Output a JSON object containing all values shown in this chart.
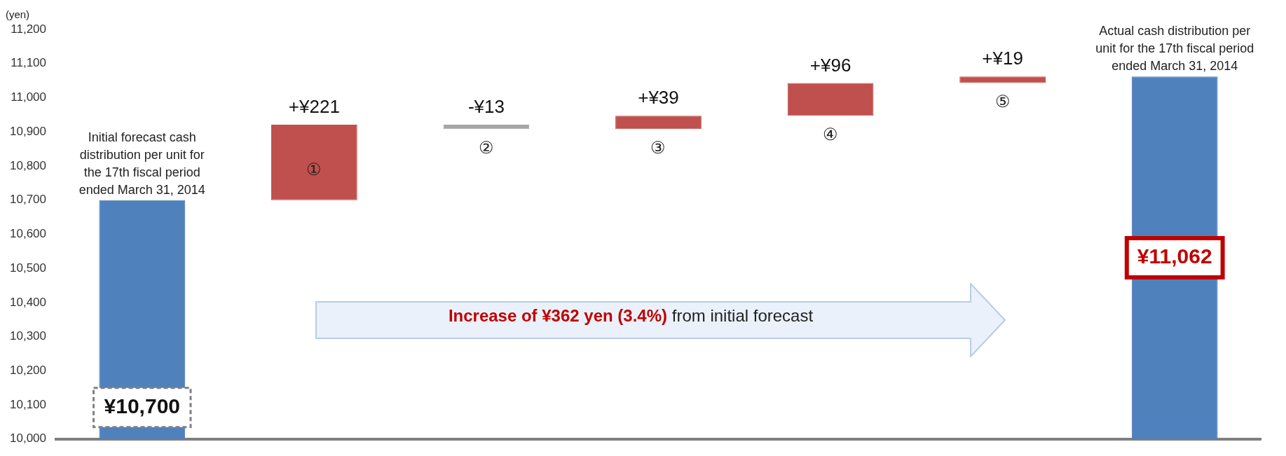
{
  "chart_data": {
    "type": "bar",
    "ylabel": "(yen)",
    "categories": [
      "Initial forecast cash distribution per unit for the 17th fiscal period ended March 31, 2014",
      "①",
      "②",
      "③",
      "④",
      "⑤",
      "Actual cash distribution per unit for the 17th fiscal period ended March 31, 2014"
    ],
    "base": [
      10000,
      10700,
      10921,
      10908,
      10947,
      11043,
      10000
    ],
    "values": [
      700,
      221,
      -13,
      39,
      96,
      19,
      1062
    ],
    "value_labels": [
      "¥10,700",
      "+¥221",
      "-¥13",
      "+¥39",
      "+¥96",
      "+¥19",
      "¥11,062"
    ],
    "colors": [
      "#4f81bd",
      "#c0504d",
      "#a6a6a6",
      "#c0504d",
      "#c0504d",
      "#c0504d",
      "#4f81bd"
    ],
    "ylim": [
      10000,
      11200
    ],
    "yticks": [
      {
        "value": 10000,
        "label": "10,000"
      },
      {
        "value": 10100,
        "label": "10,100"
      },
      {
        "value": 10200,
        "label": "10,200"
      },
      {
        "value": 10300,
        "label": "10,300"
      },
      {
        "value": 10400,
        "label": "10,400"
      },
      {
        "value": 10500,
        "label": "10,500"
      },
      {
        "value": 10600,
        "label": "10,600"
      },
      {
        "value": 10700,
        "label": "10,700"
      },
      {
        "value": 10800,
        "label": "10,800"
      },
      {
        "value": 10900,
        "label": "10,900"
      },
      {
        "value": 11000,
        "label": "11,000"
      },
      {
        "value": 11100,
        "label": "11,100"
      },
      {
        "value": 11200,
        "label": "11,200"
      }
    ],
    "annotations": [
      "Increase of ¥362 yen (3.4%)",
      "from initial forecast"
    ],
    "tick_labels": "y",
    "grid": false,
    "legend": false
  }
}
